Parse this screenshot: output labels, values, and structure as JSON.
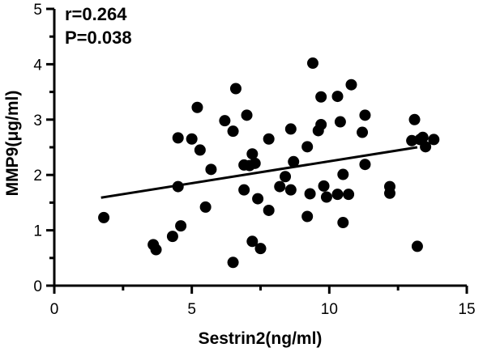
{
  "chart_data": {
    "type": "scatter",
    "xlabel": "Sestrin2(ng/ml)",
    "ylabel": "MMP9(μg/ml)",
    "xlim": [
      0,
      15
    ],
    "ylim": [
      0,
      5
    ],
    "xticks": [
      0,
      5,
      10,
      15
    ],
    "yticks": [
      0,
      1,
      2,
      3,
      4,
      5
    ],
    "grid": false,
    "annotations": [
      "r=0.264",
      "P=0.038"
    ],
    "fit_line": {
      "x": [
        1.7,
        13.2
      ],
      "y": [
        1.59,
        2.5
      ]
    },
    "points": [
      [
        1.8,
        1.23
      ],
      [
        3.6,
        0.74
      ],
      [
        3.7,
        0.65
      ],
      [
        4.3,
        0.89
      ],
      [
        4.5,
        2.67
      ],
      [
        4.5,
        1.79
      ],
      [
        4.6,
        1.08
      ],
      [
        5.0,
        2.65
      ],
      [
        5.2,
        3.22
      ],
      [
        5.3,
        2.45
      ],
      [
        5.5,
        1.42
      ],
      [
        5.7,
        2.1
      ],
      [
        6.2,
        2.98
      ],
      [
        6.5,
        2.79
      ],
      [
        6.5,
        0.42
      ],
      [
        6.6,
        3.56
      ],
      [
        6.9,
        2.18
      ],
      [
        6.9,
        1.73
      ],
      [
        7.0,
        3.08
      ],
      [
        7.1,
        2.17
      ],
      [
        7.2,
        0.8
      ],
      [
        7.2,
        2.38
      ],
      [
        7.3,
        2.21
      ],
      [
        7.4,
        1.57
      ],
      [
        7.5,
        0.67
      ],
      [
        7.8,
        2.65
      ],
      [
        7.8,
        1.36
      ],
      [
        8.2,
        1.79
      ],
      [
        8.4,
        1.97
      ],
      [
        8.6,
        1.73
      ],
      [
        8.6,
        2.83
      ],
      [
        8.7,
        2.24
      ],
      [
        9.2,
        2.51
      ],
      [
        9.2,
        1.25
      ],
      [
        9.3,
        1.66
      ],
      [
        9.4,
        4.02
      ],
      [
        9.6,
        2.8
      ],
      [
        9.7,
        2.91
      ],
      [
        9.7,
        3.41
      ],
      [
        9.8,
        1.8
      ],
      [
        9.9,
        1.6
      ],
      [
        10.3,
        3.42
      ],
      [
        10.3,
        1.65
      ],
      [
        10.4,
        2.96
      ],
      [
        10.5,
        2.01
      ],
      [
        10.5,
        1.14
      ],
      [
        10.7,
        1.65
      ],
      [
        10.8,
        3.63
      ],
      [
        11.2,
        2.77
      ],
      [
        11.3,
        3.08
      ],
      [
        11.3,
        2.19
      ],
      [
        12.2,
        1.79
      ],
      [
        12.2,
        1.67
      ],
      [
        13.0,
        2.62
      ],
      [
        13.1,
        3.0
      ],
      [
        13.2,
        0.71
      ],
      [
        13.3,
        2.64
      ],
      [
        13.4,
        2.68
      ],
      [
        13.5,
        2.51
      ],
      [
        13.8,
        2.64
      ]
    ]
  }
}
